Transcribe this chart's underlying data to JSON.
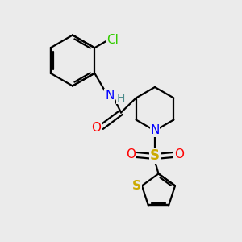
{
  "bg_color": "#ebebeb",
  "bond_color": "#000000",
  "N_color": "#0000ff",
  "O_color": "#ff0000",
  "S_color": "#ccaa00",
  "Cl_color": "#33cc00",
  "H_color": "#4a8a8a",
  "line_width": 1.6,
  "font_size": 10,
  "figsize": [
    3.0,
    3.0
  ],
  "dpi": 100,
  "xlim": [
    0,
    10
  ],
  "ylim": [
    0,
    10
  ]
}
